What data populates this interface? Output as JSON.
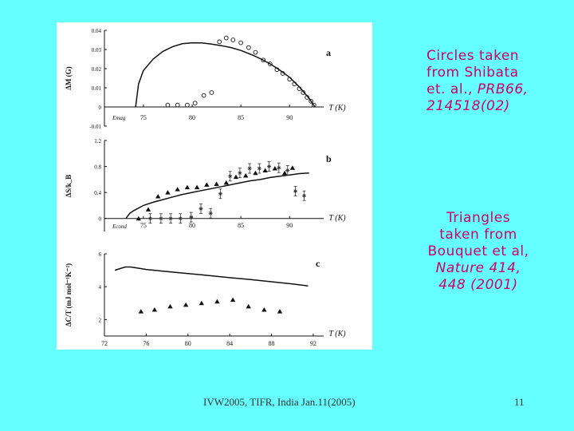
{
  "notes": {
    "circles": {
      "line1": "Circles taken",
      "line2": "from Shibata",
      "line3": "et. al., ",
      "ref": "PRB66,",
      "line4": "214518(02)"
    },
    "triangles": {
      "line1": "Triangles",
      "line2": "taken from",
      "line3": "Bouquet et al,",
      "ref1": "Nature 414,",
      "ref2": "448 (2001)"
    }
  },
  "footer": {
    "left": "IVW2005, TIFR, India Jan.11(2005)",
    "right": "11"
  },
  "colors": {
    "background": "#66ffff",
    "note_text": "#cc0066"
  },
  "chart_data": [
    {
      "type": "scatter",
      "panel_label": "a",
      "ylabel": "ΔM (G)",
      "xlabel": "T (K)",
      "xlim": [
        71,
        93.5
      ],
      "ylim": [
        -0.01,
        0.04
      ],
      "x_ticks": [
        "75",
        "80",
        "85",
        "90"
      ],
      "y_ticks": [
        "-0.01",
        "0",
        "0.01",
        "0.02",
        "0.03",
        "0.04"
      ],
      "annotation": "Emag",
      "series": [
        {
          "kind": "curve",
          "x": [
            74.2,
            74.5,
            75,
            76,
            77,
            78,
            79,
            80,
            81,
            82,
            83,
            84,
            85,
            86,
            87,
            88,
            89,
            90,
            91,
            92,
            92.6
          ],
          "y": [
            0.0,
            0.012,
            0.019,
            0.025,
            0.029,
            0.0315,
            0.033,
            0.0335,
            0.0334,
            0.0328,
            0.032,
            0.031,
            0.0295,
            0.0275,
            0.0252,
            0.0225,
            0.0192,
            0.0155,
            0.0105,
            0.0045,
            0.0
          ]
        },
        {
          "kind": "circles",
          "x": [
            77.5,
            78.5,
            79.5,
            80.3,
            81.2,
            82,
            82.8,
            83.5,
            84.2,
            85,
            85.8,
            86.5,
            87.3,
            88,
            88.7,
            89.3,
            90,
            90.5,
            91,
            91.4,
            91.8,
            92.2,
            92.5
          ],
          "y": [
            0.001,
            0.001,
            0.001,
            0.002,
            0.006,
            0.0075,
            0.034,
            0.036,
            0.035,
            0.0335,
            0.031,
            0.0285,
            0.0245,
            0.0225,
            0.0195,
            0.0175,
            0.0145,
            0.012,
            0.0095,
            0.0075,
            0.005,
            0.003,
            0.001
          ]
        }
      ]
    },
    {
      "type": "scatter",
      "panel_label": "b",
      "ylabel": "ΔS/k_B",
      "xlabel": "T (K)",
      "xlim": [
        71,
        93.5
      ],
      "ylim": [
        -0.2,
        1.2
      ],
      "x_ticks": [
        "75",
        "80",
        "85",
        "90"
      ],
      "y_ticks": [
        "0",
        "0.4",
        "0.8",
        "1.2"
      ],
      "annotation": "Econd",
      "series": [
        {
          "kind": "curve",
          "x": [
            73.2,
            73.6,
            74,
            74.5,
            75,
            76,
            77,
            78,
            79,
            80,
            81,
            82,
            83,
            84,
            85,
            86,
            87,
            88,
            89,
            90,
            91,
            92
          ],
          "y": [
            0.0,
            0.08,
            0.12,
            0.16,
            0.2,
            0.25,
            0.29,
            0.33,
            0.37,
            0.4,
            0.43,
            0.46,
            0.49,
            0.52,
            0.55,
            0.58,
            0.6,
            0.63,
            0.65,
            0.67,
            0.69,
            0.7
          ]
        },
        {
          "kind": "triangles",
          "x": [
            74.5,
            75.5,
            76.5,
            77.5,
            78.5,
            79.5,
            80.5,
            81.5,
            82.5,
            83.5,
            84.5,
            85.5,
            86.5,
            87.5,
            88.5,
            89.5,
            90.3
          ],
          "y": [
            0.0,
            0.14,
            0.34,
            0.4,
            0.45,
            0.48,
            0.48,
            0.52,
            0.53,
            0.55,
            0.64,
            0.66,
            0.7,
            0.74,
            0.77,
            0.7,
            0.78
          ]
        },
        {
          "kind": "stars_with_errorbars",
          "x": [
            75.7,
            76.8,
            77.8,
            78.8,
            79.9,
            80.9,
            81.9,
            82.9,
            83.9,
            84.9,
            85.9,
            86.9,
            87.9,
            88.9,
            89.8,
            90.6,
            91.5
          ],
          "y": [
            0.0,
            0.0,
            0.0,
            0.0,
            0.02,
            0.15,
            0.08,
            0.38,
            0.65,
            0.7,
            0.77,
            0.77,
            0.8,
            0.78,
            0.74,
            0.42,
            0.35
          ]
        }
      ]
    },
    {
      "type": "scatter",
      "panel_label": "c",
      "ylabel": "ΔC/T (mJ mol⁻¹K⁻²)",
      "xlabel": "T (K)",
      "xlim": [
        72,
        93
      ],
      "ylim": [
        1,
        6
      ],
      "x_ticks": [
        "72",
        "76",
        "80",
        "84",
        "88",
        "92"
      ],
      "y_ticks": [
        "2",
        "4",
        "6"
      ],
      "series": [
        {
          "kind": "curve",
          "x": [
            73,
            73.5,
            74,
            74.5,
            75,
            76,
            78,
            80,
            82,
            84,
            86,
            88,
            90,
            91.5
          ],
          "y": [
            5.0,
            5.1,
            5.2,
            5.2,
            5.15,
            5.05,
            4.92,
            4.8,
            4.68,
            4.55,
            4.43,
            4.3,
            4.17,
            4.05
          ]
        },
        {
          "kind": "triangles",
          "x": [
            75.5,
            76.8,
            78.3,
            79.8,
            81.3,
            82.8,
            84.3,
            85.8,
            87.3,
            88.8
          ],
          "y": [
            2.5,
            2.6,
            2.8,
            2.9,
            3.0,
            3.1,
            3.2,
            2.8,
            2.6,
            2.5
          ]
        }
      ]
    }
  ]
}
